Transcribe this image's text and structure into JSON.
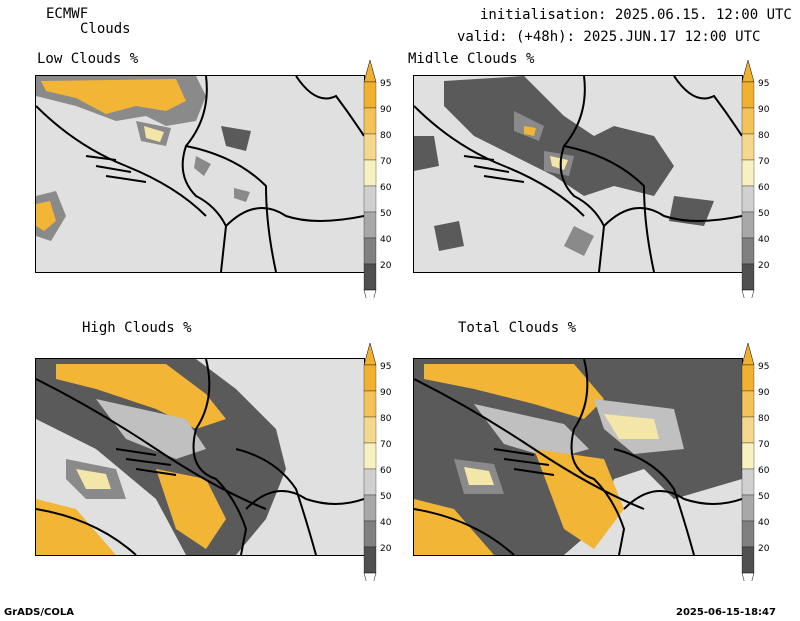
{
  "header": {
    "source": "ECMWF",
    "product": "Clouds",
    "initialisation": "initialisation: 2025.06.15. 12:00 UTC",
    "valid": "valid: (+48h): 2025.JUN.17 12:00 UTC"
  },
  "panels": [
    {
      "title": "Low Clouds %"
    },
    {
      "title": "Midlle Clouds %"
    },
    {
      "title": "High Clouds %"
    },
    {
      "title": "Total Clouds %"
    }
  ],
  "colorbar": {
    "labels": [
      "95",
      "90",
      "80",
      "70",
      "60",
      "50",
      "40",
      "20"
    ],
    "colors": [
      "#f0b030",
      "#f3c35a",
      "#f5d88e",
      "#f7f0c0",
      "#d0d0d0",
      "#a8a8a8",
      "#808080",
      "#505050"
    ],
    "arrow_top": "#f0b030",
    "arrow_bottom": "#ffffff"
  },
  "map_colors": {
    "background": "#e0e0e0",
    "dark": "#5a5a5a",
    "mid": "#8a8a8a",
    "light": "#c0c0c0",
    "cream": "#f3e6a8",
    "yellow": "#f2b535",
    "border": "#000000"
  },
  "footer": {
    "left": "GrADS/COLA",
    "right": "2025-06-15-18:47"
  }
}
